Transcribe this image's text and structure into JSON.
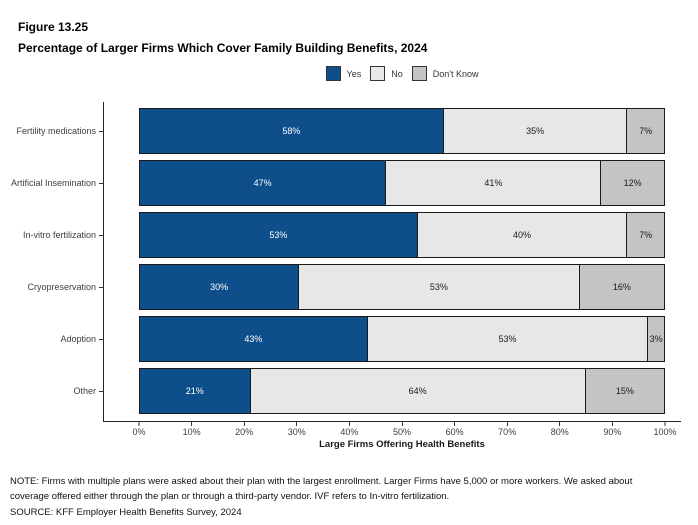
{
  "header": {
    "figure_number": "Figure 13.25",
    "title": "Percentage of Larger Firms Which Cover Family Building Benefits, 2024"
  },
  "legend": {
    "position": "top-center",
    "items": [
      {
        "label": "Yes",
        "color": "#0D4E8B"
      },
      {
        "label": "No",
        "color": "#E7E7E7"
      },
      {
        "label": "Don't Know",
        "color": "#C4C4C4"
      }
    ]
  },
  "chart_data": {
    "type": "bar",
    "orientation": "horizontal",
    "stacked": true,
    "categories": [
      "Fertility medications",
      "Artificial Insemination",
      "In-vitro fertilization",
      "Cryopreservation",
      "Adoption",
      "Other"
    ],
    "series": [
      {
        "name": "Yes",
        "color": "#0D4E8B",
        "label_color": "#FFFFFF",
        "values": [
          58,
          47,
          53,
          30,
          43,
          21
        ]
      },
      {
        "name": "No",
        "color": "#E7E7E7",
        "label_color": "#1A1A1A",
        "values": [
          35,
          41,
          40,
          53,
          53,
          64
        ]
      },
      {
        "name": "Don't Know",
        "color": "#C4C4C4",
        "label_color": "#1A1A1A",
        "values": [
          7,
          12,
          7,
          16,
          3,
          15
        ]
      }
    ],
    "value_suffix": "%",
    "xlabel": "Large Firms Offering Health Benefits",
    "x_ticks": [
      "0%",
      "10%",
      "20%",
      "30%",
      "40%",
      "50%",
      "60%",
      "70%",
      "80%",
      "90%",
      "100%"
    ],
    "xlim": [
      0,
      100
    ],
    "grid": false,
    "bar_border_color": "#1a1a1a",
    "axis_color": "#262626"
  },
  "notes": {
    "note": "NOTE: Firms with multiple plans were asked about their plan with the largest enrollment.  Larger Firms have 5,000 or more workers. We asked about coverage offered either through the plan or through a third-party vendor.  IVF refers to In-vitro fertilization.",
    "source": "SOURCE: KFF Employer Health Benefits Survey, 2024"
  }
}
